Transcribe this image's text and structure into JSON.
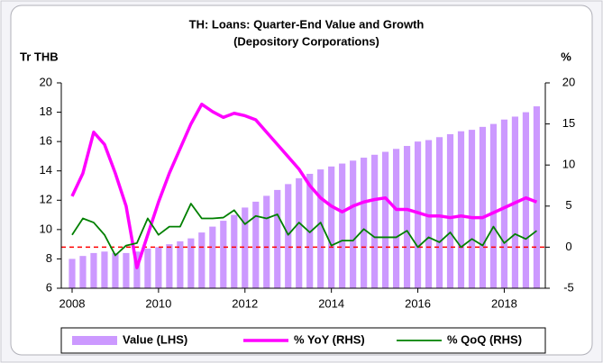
{
  "chart_data": {
    "type": "bar-line",
    "title": [
      "TH: Loans: Quarter-End Value and Growth",
      "(Depository Corporations)"
    ],
    "y_label": "Tr THB",
    "y2_label": "%",
    "x": [
      2008,
      2008.25,
      2008.5,
      2008.75,
      2009,
      2009.25,
      2009.5,
      2009.75,
      2010,
      2010.25,
      2010.5,
      2010.75,
      2011,
      2011.25,
      2011.5,
      2011.75,
      2012,
      2012.25,
      2012.5,
      2012.75,
      2013,
      2013.25,
      2013.5,
      2013.75,
      2014,
      2014.25,
      2014.5,
      2014.75,
      2015,
      2015.25,
      2015.5,
      2015.75,
      2016,
      2016.25,
      2016.5,
      2016.75,
      2017,
      2017.25,
      2017.5,
      2017.75,
      2018,
      2018.25,
      2018.5,
      2018.75
    ],
    "xlim": [
      2007.75,
      2018.95
    ],
    "xticks": [
      2008,
      2010,
      2012,
      2014,
      2016,
      2018
    ],
    "ylim": [
      6,
      20
    ],
    "yticks": [
      6,
      8,
      10,
      12,
      14,
      16,
      18,
      20
    ],
    "y2lim": [
      -5,
      20
    ],
    "y2ticks": [
      -5,
      0,
      5,
      10,
      15,
      20
    ],
    "series": [
      {
        "name": "Value (LHS)",
        "type": "bar",
        "color": "#cc99ff",
        "values": [
          8.0,
          8.2,
          8.4,
          8.5,
          8.4,
          8.4,
          8.5,
          8.7,
          8.8,
          9.0,
          9.2,
          9.4,
          9.8,
          10.2,
          10.6,
          11.0,
          11.5,
          11.9,
          12.3,
          12.7,
          13.1,
          13.5,
          13.8,
          14.1,
          14.3,
          14.5,
          14.7,
          14.9,
          15.1,
          15.3,
          15.5,
          15.7,
          16.0,
          16.1,
          16.3,
          16.5,
          16.7,
          16.8,
          17.0,
          17.2,
          17.5,
          17.7,
          18.0,
          18.4
        ]
      },
      {
        "name": "% YoY (RHS)",
        "type": "line",
        "axis": "y2",
        "color": "#ff00ff",
        "values": [
          6.2,
          9,
          14,
          12.5,
          9,
          5,
          -2.5,
          1.5,
          5.5,
          9,
          12,
          15,
          17.4,
          16.5,
          15.8,
          16.3,
          16,
          15.5,
          14,
          12.5,
          11,
          9.5,
          7.5,
          6,
          5,
          4.3,
          5,
          5.5,
          5.8,
          6,
          4.6,
          4.6,
          4.2,
          3.8,
          3.8,
          3.6,
          3.8,
          3.6,
          3.6,
          4.2,
          4.8,
          5.4,
          6.0,
          5.5
        ]
      },
      {
        "name": "% QoQ (RHS)",
        "type": "line",
        "axis": "y2",
        "color": "#008000",
        "values": [
          1.5,
          3.5,
          3.0,
          1.5,
          -1.0,
          0.2,
          0.5,
          3.5,
          1.5,
          2.5,
          2.5,
          5.3,
          3.5,
          3.5,
          3.6,
          4.5,
          2.8,
          3.8,
          3.5,
          4.0,
          1.5,
          3.0,
          1.8,
          3.0,
          0.2,
          0.8,
          0.8,
          2.2,
          1.2,
          1.2,
          1.2,
          2.0,
          0.0,
          1.2,
          0.6,
          1.8,
          0.0,
          1.0,
          0.2,
          2.5,
          0.5,
          1.6,
          1.0,
          2.0
        ]
      }
    ],
    "reference_line": {
      "value": 0,
      "axis": "y2",
      "color": "#ff0000"
    },
    "legend": "bottom"
  }
}
